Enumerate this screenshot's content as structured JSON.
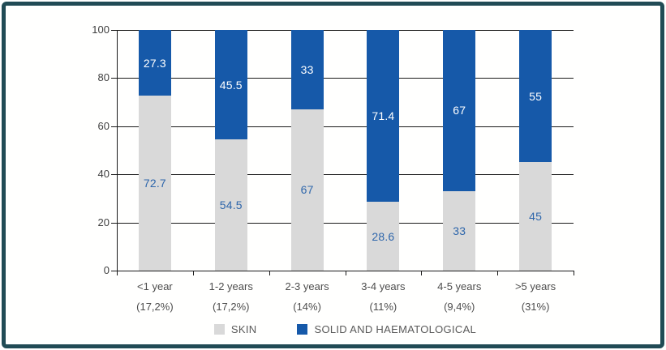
{
  "chart_data": {
    "type": "bar",
    "stacked": true,
    "title": "",
    "categories": [
      "<1 year",
      "1-2 years",
      "2-3 years",
      "3-4 years",
      "4-5 years",
      ">5 years"
    ],
    "category_sublabels": [
      "(17,2%)",
      "(17,2%)",
      "(14%)",
      "(11%)",
      "(9,4%)",
      "(31%)"
    ],
    "series": [
      {
        "name": "SKIN",
        "values": [
          72.7,
          54.5,
          67,
          28.6,
          33,
          45
        ],
        "color": "#d9d9d9",
        "label_color": "#2e66ab"
      },
      {
        "name": "SOLID AND HAEMATOLOGICAL",
        "values": [
          27.3,
          45.5,
          33,
          71.4,
          67,
          55
        ],
        "color": "#1659a9",
        "label_color": "#ffffff"
      }
    ],
    "ylim": [
      0,
      100
    ],
    "y_ticks": [
      0,
      20,
      40,
      60,
      80,
      100
    ],
    "grid": true,
    "legend_position": "bottom"
  },
  "colors": {
    "frame_border": "#214b55",
    "axis": "#1a1a1a",
    "background": "#ffffff",
    "tick_label": "#404040",
    "x_label": "#4d4d4d",
    "legend_text": "#595959"
  }
}
